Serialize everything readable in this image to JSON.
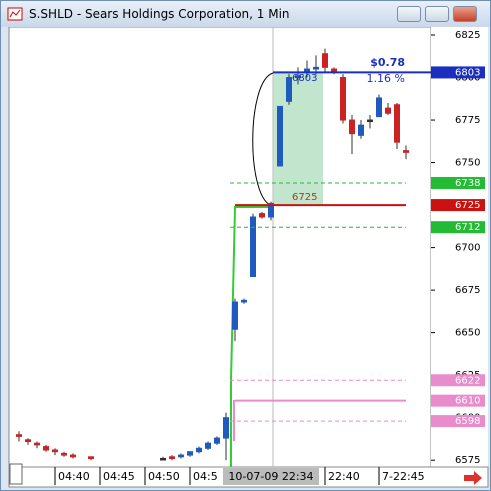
{
  "window_title": "S.SHLD - Sears Holdings Corporation, 1 Min",
  "chart_data": {
    "type": "candlestick",
    "ylim": [
      6571,
      6830
    ],
    "yticks": [
      6575,
      6600,
      6625,
      6650,
      6675,
      6700,
      6725,
      6750,
      6775,
      6800,
      6825
    ],
    "categories": [
      null,
      null,
      null,
      null,
      "04:40",
      null,
      null,
      null,
      null,
      "04:45",
      null,
      null,
      null,
      null,
      "04:50",
      null,
      null,
      null,
      null,
      "04:5",
      null,
      null,
      null,
      null,
      null,
      null,
      null,
      null,
      "10-07-09 22:34",
      null,
      null,
      null,
      null,
      null,
      "22:40",
      null,
      null,
      null,
      null,
      null,
      "7-22:45",
      null,
      null,
      null
    ],
    "highlight_category": 28,
    "up_color": "#1f5bbf",
    "down_color": "#cc2222",
    "flat_color": "#333333",
    "open": [
      6590,
      6587,
      6585,
      6583,
      6581,
      6579,
      6578,
      null,
      6577,
      null,
      null,
      null,
      null,
      null,
      null,
      null,
      6576,
      6577,
      6577,
      6578,
      6580,
      6582,
      6585,
      6588,
      6652,
      6668,
      6683,
      6720,
      6718,
      6748,
      6786,
      6800,
      6803,
      6805,
      6814,
      6805,
      6800,
      6775,
      6766,
      6775,
      6777,
      6782,
      6784,
      6757
    ],
    "high": [
      6592,
      6588,
      6586,
      6584,
      6582,
      6580,
      6579,
      null,
      6577,
      null,
      null,
      null,
      null,
      null,
      null,
      null,
      6577,
      6578,
      6579,
      6580,
      6583,
      6586,
      6589,
      6603,
      6670,
      6670,
      6720,
      6721,
      6727,
      6783,
      6802,
      6806,
      6810,
      6813,
      6817,
      6806,
      6802,
      6778,
      6775,
      6778,
      6790,
      6785,
      6785,
      6760
    ],
    "low": [
      6586,
      6584,
      6582,
      6580,
      6578,
      6577,
      6576,
      null,
      6575,
      null,
      null,
      null,
      null,
      null,
      null,
      null,
      6575,
      6575,
      6576,
      6577,
      6579,
      6581,
      6584,
      6575,
      6645,
      6667,
      6683,
      6717,
      6716,
      6748,
      6784,
      6796,
      6800,
      6802,
      6803,
      6802,
      6773,
      6755,
      6764,
      6770,
      6778,
      6778,
      6758,
      6752
    ],
    "close": [
      6589,
      6586,
      6584,
      6581,
      6580,
      6578,
      6577,
      null,
      6576,
      null,
      null,
      null,
      null,
      null,
      null,
      null,
      6576,
      6576,
      6578,
      6580,
      6582,
      6585,
      6588,
      6600,
      6668,
      6669,
      6718,
      6718,
      6726,
      6783,
      6800,
      6801,
      6805,
      6806,
      6806,
      6803,
      6775,
      6767,
      6772,
      6775,
      6788,
      6779,
      6762,
      6756
    ],
    "levels": [
      {
        "value": 6803,
        "color": "#1a2fbf",
        "style": "solid"
      },
      {
        "value": 6738,
        "color": "#22bb33",
        "style": "dashed"
      },
      {
        "value": 6725,
        "color": "#cc1111",
        "style": "solid"
      },
      {
        "value": 6712,
        "color": "#22bb33",
        "style": "dashed"
      },
      {
        "value": 6622,
        "color": "#e88ccc",
        "style": "dashed"
      },
      {
        "value": 6610,
        "color": "#e88ccc",
        "style": "solid"
      },
      {
        "value": 6598,
        "color": "#e88ccc",
        "style": "dashed"
      }
    ],
    "measure": {
      "change": "$0.78",
      "percent": "1.16 %"
    }
  }
}
